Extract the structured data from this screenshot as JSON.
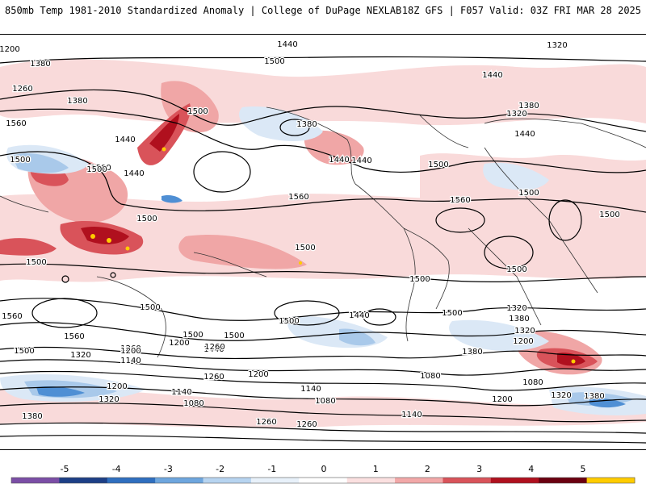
{
  "header": {
    "title": "850mb Temp 1981-2010 Standardized Anomaly | College of DuPage NEXLAB",
    "run_info": "18Z GFS | F057 Valid: 03Z FRI MAR 28 2025"
  },
  "map": {
    "contour_labels": [
      "1380",
      "1260",
      "1440",
      "1200",
      "1380",
      "1320",
      "1440",
      "1500",
      "1260",
      "1380",
      "1560",
      "1440",
      "1500",
      "1500",
      "1440",
      "1380",
      "1320",
      "1380",
      "1440",
      "1500",
      "1500",
      "1440",
      "1440",
      "1560",
      "1500",
      "1560",
      "1500",
      "1500",
      "1500",
      "1500",
      "1500",
      "1500",
      "1500",
      "1500",
      "1500",
      "1500",
      "1440",
      "1560",
      "1500",
      "1440",
      "1560",
      "1380",
      "1500",
      "1320",
      "1260",
      "1200",
      "1200",
      "1320",
      "1260",
      "1380",
      "1320",
      "1140",
      "1260",
      "1200",
      "1080",
      "1200",
      "1140",
      "1080",
      "1320",
      "1080",
      "1320",
      "1380",
      "1080",
      "1140",
      "1200",
      "1140",
      "1260",
      "1260",
      "1380",
      "1200",
      "1500"
    ],
    "colors": {
      "contour": "#000000",
      "border": "#333333",
      "warm_1": "#f9dada",
      "warm_2": "#f0a6a6",
      "warm_3": "#d9535a",
      "warm_4": "#b0101e",
      "warm_5": "#ffcc00",
      "cold_1": "#dbe8f6",
      "cold_2": "#a9c9ea",
      "cold_3": "#4f8fd4",
      "cold_4": "#1d4f9a"
    }
  },
  "colorbar": {
    "labels": [
      "-5",
      "-4",
      "-3",
      "-2",
      "-1",
      "0",
      "1",
      "2",
      "3",
      "4",
      "5"
    ],
    "colors": [
      "#7b4ea6",
      "#1d3f86",
      "#2f6fbf",
      "#6ea6de",
      "#b7d4f0",
      "#e8f1fa",
      "#ffffff",
      "#fbe0e0",
      "#f2a8a8",
      "#d9535a",
      "#b0101e",
      "#6b0010",
      "#ffcc00"
    ]
  }
}
